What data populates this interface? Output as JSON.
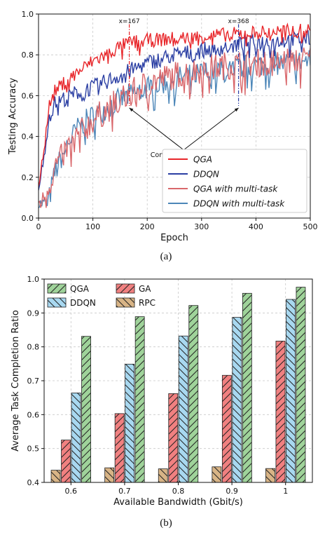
{
  "figure": {
    "caption_a": "(a)",
    "caption_b": "(b)"
  },
  "chart_data": [
    {
      "type": "line",
      "title": "",
      "xlabel": "Epoch",
      "ylabel": "Testing Accuracy",
      "xlim": [
        0,
        500
      ],
      "ylim": [
        0.0,
        1.0
      ],
      "xticks": [
        0,
        100,
        200,
        300,
        400,
        500
      ],
      "yticks": [
        0.0,
        0.2,
        0.4,
        0.6,
        0.8,
        1.0
      ],
      "grid": true,
      "legend_position": "bottom-right",
      "series": [
        {
          "name": "QGA",
          "color": "#e8262a",
          "x": [
            0,
            10,
            20,
            30,
            50,
            75,
            100,
            125,
            150,
            167,
            200,
            250,
            300,
            350,
            400,
            450,
            500
          ],
          "y": [
            0.15,
            0.35,
            0.55,
            0.62,
            0.67,
            0.72,
            0.77,
            0.8,
            0.84,
            0.86,
            0.87,
            0.88,
            0.89,
            0.9,
            0.91,
            0.915,
            0.92
          ]
        },
        {
          "name": "DDQN",
          "color": "#2b3fa3",
          "x": [
            0,
            10,
            20,
            30,
            50,
            75,
            100,
            125,
            150,
            175,
            200,
            250,
            300,
            350,
            368,
            400,
            450,
            500
          ],
          "y": [
            0.15,
            0.3,
            0.5,
            0.56,
            0.59,
            0.62,
            0.64,
            0.67,
            0.7,
            0.73,
            0.76,
            0.8,
            0.82,
            0.84,
            0.85,
            0.86,
            0.87,
            0.88
          ]
        },
        {
          "name": "QGA with multi-task",
          "color": "#d9676b",
          "x": [
            0,
            10,
            20,
            30,
            50,
            75,
            100,
            125,
            150,
            175,
            200,
            250,
            300,
            350,
            400,
            450,
            500
          ],
          "y": [
            0.07,
            0.1,
            0.16,
            0.25,
            0.33,
            0.41,
            0.48,
            0.53,
            0.58,
            0.62,
            0.66,
            0.7,
            0.73,
            0.75,
            0.76,
            0.77,
            0.78
          ]
        },
        {
          "name": "DDQN with multi-task",
          "color": "#4c86b8",
          "x": [
            0,
            10,
            20,
            30,
            50,
            75,
            100,
            125,
            150,
            175,
            200,
            250,
            300,
            350,
            400,
            450,
            500
          ],
          "y": [
            0.07,
            0.07,
            0.1,
            0.22,
            0.35,
            0.45,
            0.5,
            0.54,
            0.58,
            0.61,
            0.64,
            0.68,
            0.71,
            0.73,
            0.75,
            0.76,
            0.77
          ]
        }
      ],
      "annotations": [
        {
          "text": "x=167",
          "x": 167
        },
        {
          "text": "x=368",
          "x": 368
        },
        {
          "text": "Convergence points",
          "x": 267,
          "y": 0.43
        }
      ],
      "convergence_markers": [
        {
          "x": 167,
          "y_top": 0.95,
          "y_bottom": 0.55,
          "color": "#e8262a"
        },
        {
          "x": 368,
          "y_top": 0.95,
          "y_bottom": 0.55,
          "color": "#2b3fa3"
        }
      ]
    },
    {
      "type": "bar",
      "title": "",
      "xlabel": "Available Bandwidth (Gbit/s)",
      "ylabel": "Average Task Completion Ratio",
      "categories": [
        "0.6",
        "0.7",
        "0.8",
        "0.9",
        "1"
      ],
      "ylim": [
        0.4,
        1.0
      ],
      "yticks": [
        0.4,
        0.5,
        0.6,
        0.7,
        0.8,
        0.9,
        1.0
      ],
      "grid": true,
      "legend_position": "top-left",
      "series": [
        {
          "name": "RPC",
          "color": "#d8b486",
          "hatch": "backslash",
          "values": [
            0.436,
            0.443,
            0.44,
            0.446,
            0.441
          ]
        },
        {
          "name": "GA",
          "color": "#f08080",
          "hatch": "slash",
          "values": [
            0.525,
            0.603,
            0.662,
            0.716,
            0.817
          ]
        },
        {
          "name": "DDQN",
          "color": "#a8d8f0",
          "hatch": "backslash",
          "values": [
            0.664,
            0.749,
            0.832,
            0.887,
            0.94
          ]
        },
        {
          "name": "QGA",
          "color": "#9fd39a",
          "hatch": "slash",
          "values": [
            0.831,
            0.889,
            0.922,
            0.958,
            0.976
          ]
        }
      ],
      "legend_order": [
        "QGA",
        "DDQN",
        "GA",
        "RPC"
      ]
    }
  ]
}
